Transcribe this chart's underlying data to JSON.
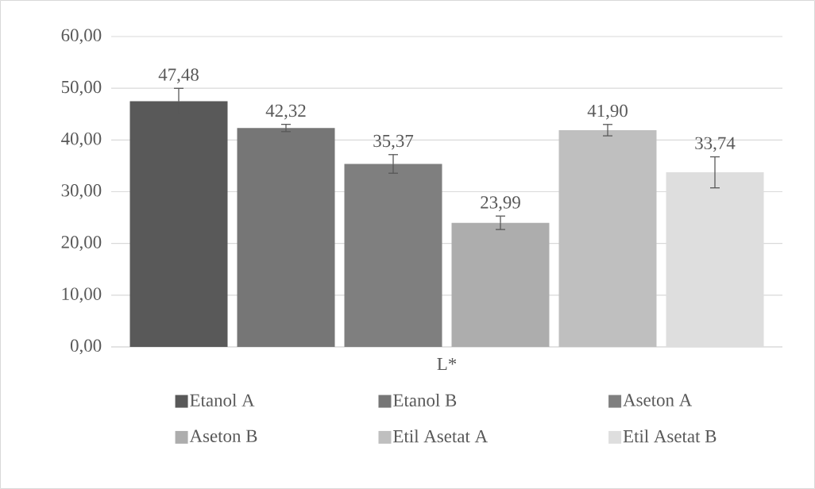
{
  "chart_data": {
    "type": "bar",
    "categories": [
      "L*"
    ],
    "series": [
      {
        "name": "Etanol A",
        "color": "#595959",
        "values": [
          47.48
        ],
        "errors": [
          2.5
        ],
        "value_labels": [
          "47,48"
        ]
      },
      {
        "name": "Etanol B",
        "color": "#767676",
        "values": [
          42.32
        ],
        "errors": [
          0.7
        ],
        "value_labels": [
          "42,32"
        ]
      },
      {
        "name": "Aseton A",
        "color": "#7f7f7f",
        "values": [
          35.37
        ],
        "errors": [
          1.8
        ],
        "value_labels": [
          "35,37"
        ]
      },
      {
        "name": "Aseton B",
        "color": "#adadad",
        "values": [
          23.99
        ],
        "errors": [
          1.3
        ],
        "value_labels": [
          "23,99"
        ]
      },
      {
        "name": "Etil Asetat A",
        "color": "#bfbfbf",
        "values": [
          41.9
        ],
        "errors": [
          1.1
        ],
        "value_labels": [
          "41,90"
        ]
      },
      {
        "name": "Etil Asetat B",
        "color": "#dedede",
        "values": [
          33.74
        ],
        "errors": [
          3.0
        ],
        "value_labels": [
          "33,74"
        ]
      }
    ],
    "ylim": [
      0,
      60
    ],
    "yticks": [
      {
        "value": 0,
        "label": "0,00"
      },
      {
        "value": 10,
        "label": "10,00"
      },
      {
        "value": 20,
        "label": "20,00"
      },
      {
        "value": 30,
        "label": "30,00"
      },
      {
        "value": 40,
        "label": "40,00"
      },
      {
        "value": 50,
        "label": "50,00"
      },
      {
        "value": 60,
        "label": "60,00"
      }
    ],
    "grid": "y",
    "legend": "bottom"
  }
}
